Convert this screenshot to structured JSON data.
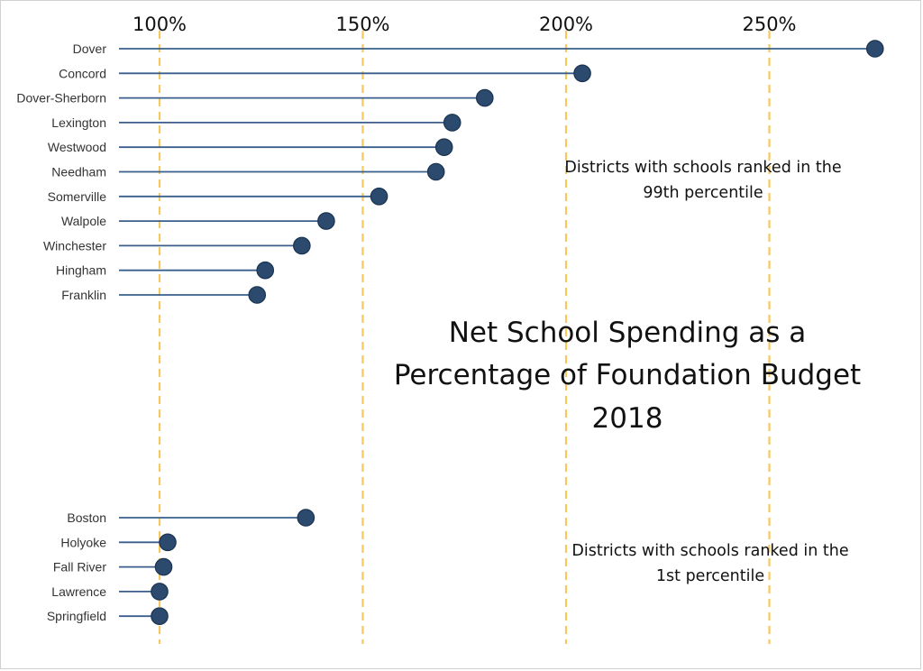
{
  "chart_data": {
    "type": "lollipop",
    "title": [
      "Net School Spending as a",
      "Percentage of Foundation Budget",
      "2018"
    ],
    "xlabel": "",
    "ylabel": "",
    "x_unit": "percent",
    "xlim": [
      90,
      276
    ],
    "x_ticks": [
      100,
      150,
      200,
      250
    ],
    "x_tick_labels": [
      "100%",
      "150%",
      "200%",
      "250%"
    ],
    "reference_lines": [
      100,
      150,
      200,
      250
    ],
    "colors": {
      "stem": "#3a5f8c",
      "dot": "#2b4a6e",
      "dot_edge": "#1b3350",
      "gridline": "#f7c85e"
    },
    "groups": [
      {
        "name": "99th percentile",
        "annotation": [
          "Districts with schools ranked in the",
          "99th percentile"
        ],
        "categories": [
          "Dover",
          "Concord",
          "Dover-Sherborn",
          "Lexington",
          "Westwood",
          "Needham",
          "Somerville",
          "Walpole",
          "Winchester",
          "Hingham",
          "Franklin"
        ],
        "values": [
          276,
          204,
          180,
          172,
          170,
          168,
          154,
          141,
          135,
          126,
          124
        ]
      },
      {
        "name": "1st percentile",
        "annotation": [
          "Districts with schools ranked in the",
          "1st percentile"
        ],
        "categories": [
          "Boston",
          "Holyoke",
          "Fall River",
          "Lawrence",
          "Springfield"
        ],
        "values": [
          136,
          102,
          101,
          100,
          100
        ]
      }
    ]
  }
}
